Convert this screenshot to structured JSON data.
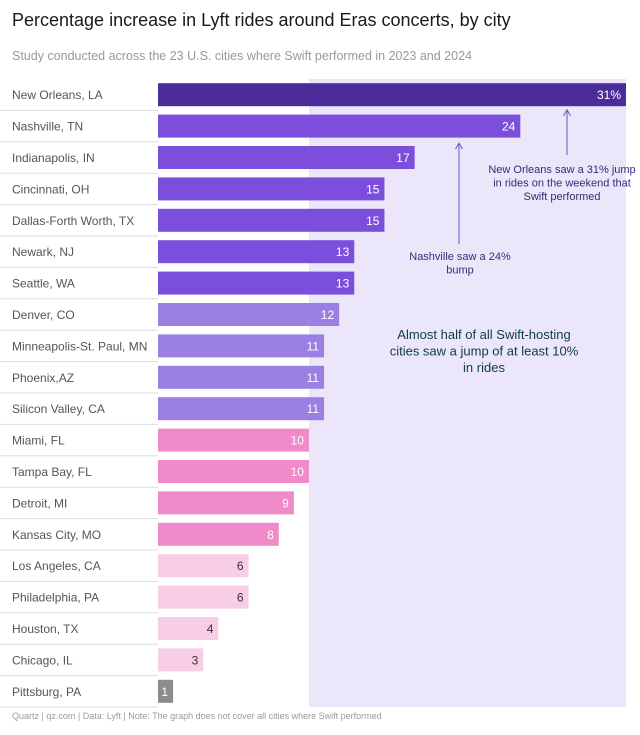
{
  "title": "Percentage increase in Lyft rides around Eras concerts, by city",
  "subtitle": "Study conducted across the 23 U.S. cities where Swift performed in 2023 and 2024",
  "footer": "Quartz | qz.com | Data: Lyft | Note: The graph does not cover all cities where Swift performed",
  "colors": {
    "highlight_band": "#ebe6f9",
    "row_divider": "#dddddd",
    "label_text": "#555555",
    "annotation_text": "#3a2a7a",
    "callout_text": "#0f3b44",
    "arrow": "#6a55c4"
  },
  "chart_data": {
    "type": "bar",
    "orientation": "horizontal",
    "xlim": [
      0,
      31
    ],
    "categories": [
      "New Orleans, LA",
      "Nashville, TN",
      "Indianapolis, IN",
      "Cincinnati, OH",
      "Dallas-Forth Worth, TX",
      "Newark, NJ",
      "Seattle, WA",
      "Denver, CO",
      "Minneapolis-St. Paul, MN",
      "Phoenix,AZ",
      "Silicon Valley, CA",
      "Miami, FL",
      "Tampa Bay, FL",
      "Detroit, MI",
      "Kansas City, MO",
      "Los Angeles, CA",
      "Philadelphia, PA",
      "Houston, TX",
      "Chicago, IL",
      "Pittsburg, PA"
    ],
    "values": [
      31,
      24,
      17,
      15,
      15,
      13,
      13,
      12,
      11,
      11,
      11,
      10,
      10,
      9,
      8,
      6,
      6,
      4,
      3,
      1
    ],
    "value_labels": [
      "31%",
      "24",
      "17",
      "15",
      "15",
      "13",
      "13",
      "12",
      "11",
      "11",
      "11",
      "10",
      "10",
      "9",
      "8",
      "6",
      "6",
      "4",
      "3",
      "1"
    ],
    "bar_colors": [
      "#4b2d9a",
      "#7b4fdc",
      "#7b4fdc",
      "#7b4fdc",
      "#7b4fdc",
      "#7b4fdc",
      "#7b4fdc",
      "#9b7fe3",
      "#9b7fe3",
      "#9b7fe3",
      "#9b7fe3",
      "#f08ac8",
      "#f08ac8",
      "#f08ac8",
      "#f08ac8",
      "#f8cde6",
      "#f8cde6",
      "#f8cde6",
      "#f8cde6",
      "#8c8c8c"
    ],
    "value_label_colors": [
      "#ffffff",
      "#ffffff",
      "#ffffff",
      "#ffffff",
      "#ffffff",
      "#ffffff",
      "#ffffff",
      "#ffffff",
      "#ffffff",
      "#ffffff",
      "#ffffff",
      "#ffffff",
      "#ffffff",
      "#ffffff",
      "#ffffff",
      "#333333",
      "#333333",
      "#333333",
      "#333333",
      "#ffffff"
    ],
    "highlight_band_from_value": 10,
    "annotations": [
      {
        "lines": [
          "New Orleans saw a 31% jump",
          "in rides on the weekend that",
          "Swift performed"
        ],
        "points_to": "New Orleans, LA"
      },
      {
        "lines": [
          "Nashville saw a 24%",
          "bump"
        ],
        "points_to": "Nashville, TN"
      },
      {
        "lines": [
          "Almost half of all Swift-hosting",
          "cities saw a jump of at least 10%",
          "in rides"
        ]
      }
    ]
  }
}
